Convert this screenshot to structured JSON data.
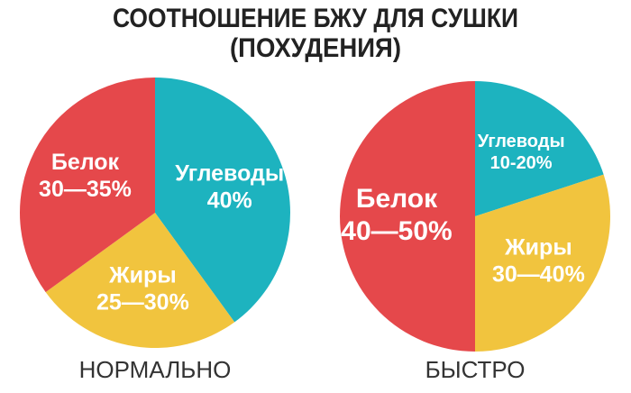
{
  "title": [
    "СООТНОШЕНИЕ БЖУ ДЛЯ СУШКИ",
    "(ПОХУДЕНИЯ)"
  ],
  "chart_data": [
    {
      "type": "pie",
      "title": "НОРМАЛЬНО",
      "categories": [
        "Углеводы",
        "Жиры",
        "Белок"
      ],
      "values": [
        40,
        25,
        35
      ],
      "value_labels": [
        "40%",
        "25—30%",
        "30—35%"
      ],
      "colors": [
        "#1db3bf",
        "#f1c43e",
        "#e5484b"
      ]
    },
    {
      "type": "pie",
      "title": "БЫСТРО",
      "categories": [
        "Углеводы",
        "Жиры",
        "Белок"
      ],
      "values": [
        20,
        30,
        50
      ],
      "value_labels": [
        "10-20%",
        "30—40%",
        "40—50%"
      ],
      "colors": [
        "#1db3bf",
        "#f1c43e",
        "#e5484b"
      ]
    }
  ]
}
